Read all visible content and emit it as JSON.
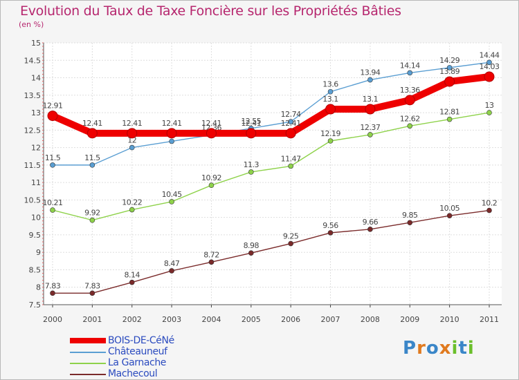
{
  "title": "Evolution du Taux de Taxe Foncière sur les Propriétés Bâties",
  "unit_label": "(en %)",
  "brand": {
    "text": "Proxiti",
    "letters": [
      "P",
      "r",
      "o",
      "x",
      "i",
      "t",
      "i"
    ],
    "colors": [
      "#3a86c8",
      "#e07a1f",
      "#3a86c8",
      "#e07a1f",
      "#6bbf2b",
      "#3a86c8",
      "#6bbf2b"
    ]
  },
  "chart_data": {
    "type": "line",
    "title": "Evolution du Taux de Taxe Foncière sur les Propriétés Bâties",
    "ylabel": "(en %)",
    "xlabel": "",
    "x": [
      "2000",
      "2001",
      "2002",
      "2003",
      "2004",
      "2005",
      "2006",
      "2007",
      "2008",
      "2009",
      "2010",
      "2011"
    ],
    "ylim": [
      7.5,
      15
    ],
    "yticks": [
      "7.5",
      "8",
      "8.5",
      "9",
      "9.5",
      "10",
      "10.5",
      "11",
      "11.5",
      "12",
      "12.5",
      "13",
      "13.5",
      "14",
      "14.5",
      "15"
    ],
    "grid": true,
    "legend_position": "bottom-left",
    "series": [
      {
        "name": "BOIS-DE-CéNé",
        "color": "#ee0000",
        "highlight": true,
        "values": [
          12.91,
          12.41,
          12.41,
          12.41,
          12.41,
          12.41,
          12.41,
          13.1,
          13.1,
          13.36,
          13.89,
          14.03
        ],
        "labels": [
          "12.91",
          "12.41",
          "12.41",
          "12.41",
          "12.41",
          "12.41",
          "12.41",
          "13.1",
          "13.1",
          "13.36",
          "13.89",
          "14.03"
        ]
      },
      {
        "name": "Châteauneuf",
        "color": "#5a9ed2",
        "values": [
          11.5,
          11.5,
          12,
          12.18,
          12.36,
          12.55,
          12.74,
          13.6,
          13.94,
          14.14,
          14.29,
          14.44
        ],
        "labels": [
          "11.5",
          "11.5",
          "12",
          "12.18",
          "12.36",
          "12.55",
          "12.74",
          "13.6",
          "13.94",
          "14.14",
          "14.29",
          "14.44"
        ]
      },
      {
        "name": "La Garnache",
        "color": "#8ed24a",
        "values": [
          10.21,
          9.92,
          10.22,
          10.45,
          10.92,
          11.3,
          11.47,
          12.19,
          12.37,
          12.62,
          12.81,
          13
        ],
        "labels": [
          "10.21",
          "9.92",
          "10.22",
          "10.45",
          "10.92",
          "11.3",
          "11.47",
          "12.19",
          "12.37",
          "12.62",
          "12.81",
          "13"
        ]
      },
      {
        "name": "Machecoul",
        "color": "#7a2a2a",
        "values": [
          7.83,
          7.83,
          8.14,
          8.47,
          8.72,
          8.98,
          9.25,
          9.56,
          9.66,
          9.85,
          10.05,
          10.2
        ],
        "labels": [
          "7.83",
          "7.83",
          "8.14",
          "8.47",
          "8.72",
          "8.98",
          "9.25",
          "9.56",
          "9.66",
          "9.85",
          "10.05",
          "10.2"
        ]
      }
    ]
  }
}
